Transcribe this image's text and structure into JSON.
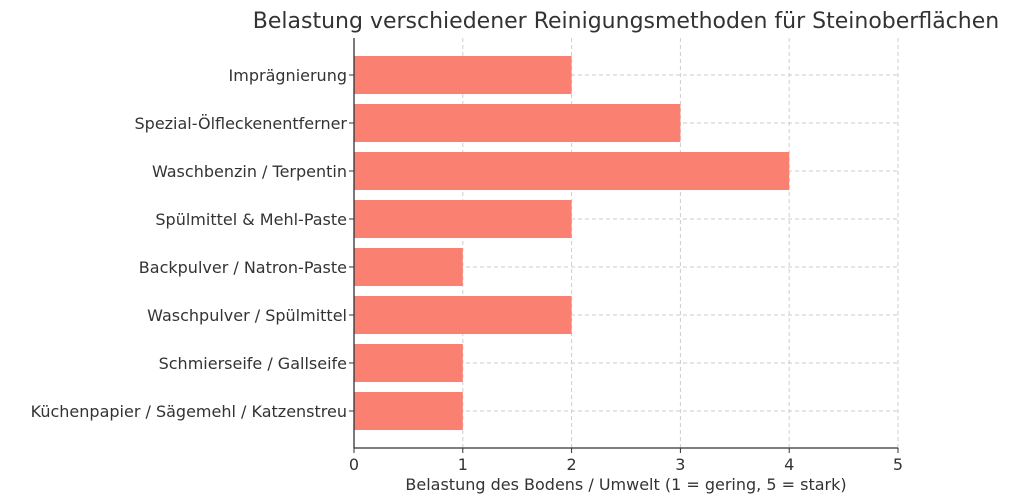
{
  "chart_data": {
    "type": "bar",
    "orientation": "horizontal",
    "title": "Belastung verschiedener Reinigungsmethoden für Steinoberflächen",
    "xlabel": "Belastung des Bodens / Umwelt (1 = gering, 5 = stark)",
    "ylabel": "",
    "categories": [
      "Imprägnierung",
      "Spezial-Ölfleckenentferner",
      "Waschbenzin / Terpentin",
      "Spülmittel & Mehl-Paste",
      "Backpulver / Natron-Paste",
      "Waschpulver / Spülmittel",
      "Schmierseife / Gallseife",
      "Küchenpapier / Sägemehl / Katzenstreu"
    ],
    "values": [
      2,
      3,
      4,
      2,
      1,
      2,
      1,
      1
    ],
    "xlim": [
      0,
      5
    ],
    "xticks": [
      "0",
      "1",
      "2",
      "3",
      "4",
      "5"
    ],
    "grid": true,
    "bar_color": "#fa8072"
  }
}
